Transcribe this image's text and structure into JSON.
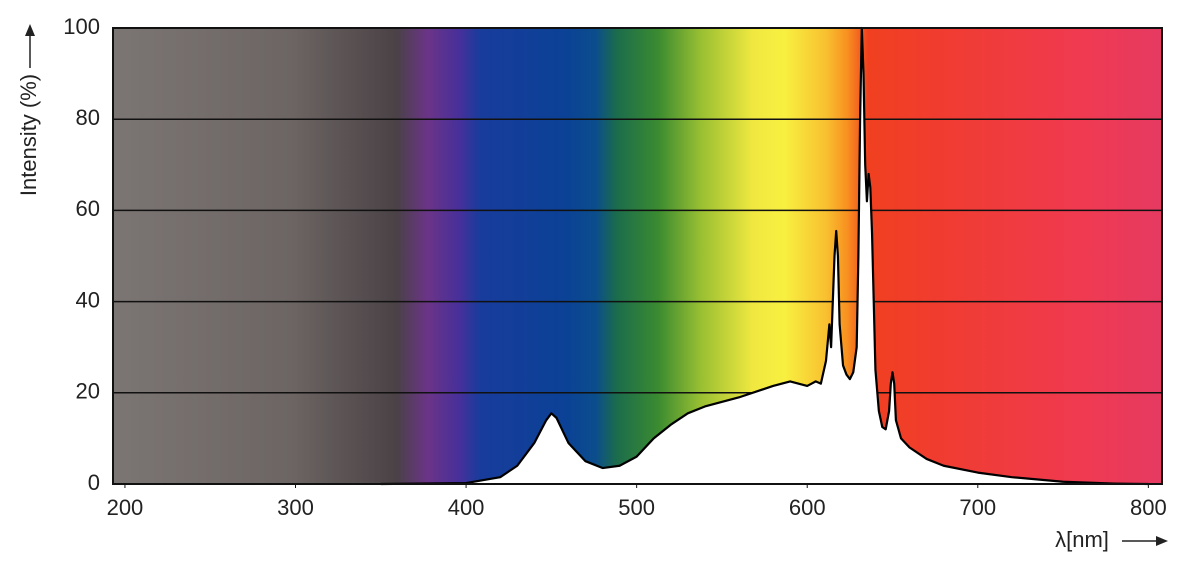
{
  "chart_data": {
    "type": "area",
    "y_label": "Intensity (%)",
    "x_label": "λ[nm]",
    "xlim": [
      193,
      808
    ],
    "xticks": [
      200,
      300,
      400,
      500,
      600,
      700,
      800
    ],
    "ylim": [
      0,
      100
    ],
    "yticks": [
      0,
      20,
      40,
      60,
      80,
      100
    ],
    "grid": true,
    "color": "#ffffff",
    "line_color": "#000000",
    "x": [
      350,
      400,
      420,
      430,
      440,
      447,
      450,
      453,
      460,
      470,
      480,
      490,
      500,
      510,
      520,
      530,
      540,
      560,
      580,
      590,
      595,
      600,
      605,
      608,
      611,
      613,
      614,
      616,
      617,
      618,
      619,
      621,
      623,
      625,
      627,
      629,
      630,
      631,
      632,
      633,
      634,
      635,
      636,
      637,
      638,
      639,
      640,
      642,
      644,
      646,
      648,
      649,
      650,
      651,
      652,
      655,
      660,
      670,
      680,
      700,
      720,
      750,
      780,
      800
    ],
    "values": [
      0,
      0.2,
      1.5,
      4,
      9,
      14,
      15.5,
      14.5,
      9,
      5,
      3.5,
      4,
      6,
      10,
      13,
      15.5,
      17,
      19,
      21.5,
      22.5,
      22,
      21.5,
      22.5,
      22,
      27,
      35,
      30,
      50,
      55.5,
      50,
      35,
      26,
      24,
      23,
      24.5,
      30,
      50,
      80,
      100,
      90,
      70,
      62,
      68,
      65,
      55,
      40,
      25,
      16,
      12.5,
      12,
      16,
      22,
      24.5,
      22,
      14,
      10,
      8,
      5.5,
      4,
      2.5,
      1.5,
      0.5,
      0.1,
      0
    ]
  }
}
